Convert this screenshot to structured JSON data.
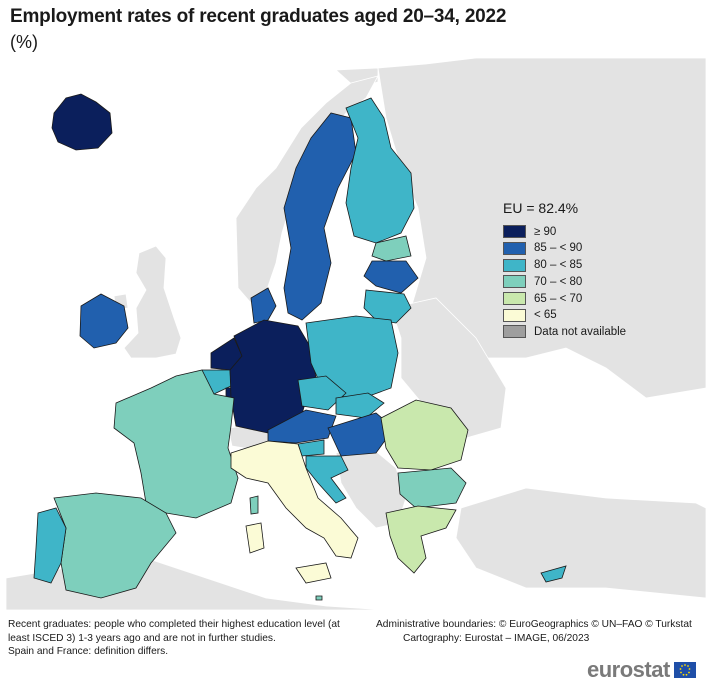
{
  "title": "Employment rates of recent graduates aged 20–34, 2022",
  "subtitle": "(%)",
  "legend": {
    "title": "EU = 82.4%",
    "items": [
      {
        "label": "≥ 90",
        "color": "#0b1f5c"
      },
      {
        "label": "85 – < 90",
        "color": "#2160ae"
      },
      {
        "label": "80 – < 85",
        "color": "#3fb5c8"
      },
      {
        "label": "70 – < 80",
        "color": "#7ecfbc"
      },
      {
        "label": "65 – < 70",
        "color": "#c9e8ad"
      },
      {
        "label": "< 65",
        "color": "#fbfbd6"
      },
      {
        "label": "Data not available",
        "color": "#9e9e9e"
      }
    ]
  },
  "footnote": {
    "line1": "Recent graduates: people who completed their highest education level (at least ISCED 3) 1-3 years ago and are not in further studies.",
    "line2": "Spain and France: definition differs."
  },
  "credits": {
    "line1": "Administrative boundaries: © EuroGeographics © UN–FAO © Turkstat",
    "line2": "Cartography: Eurostat – IMAGE, 06/2023"
  },
  "logo": "eurostat",
  "colors": {
    "non_eu": "#e3e3e3",
    "sea": "#ffffff",
    "border": "#1a1a1a"
  }
}
